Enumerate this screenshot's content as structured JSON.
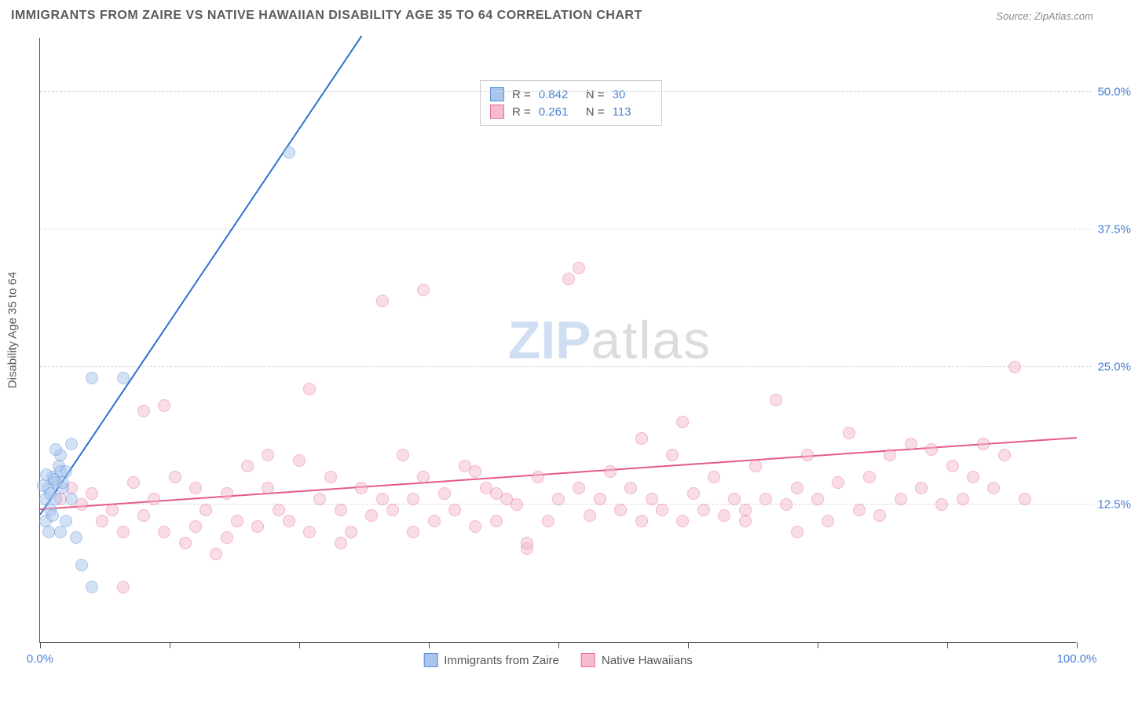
{
  "header": {
    "title": "IMMIGRANTS FROM ZAIRE VS NATIVE HAWAIIAN DISABILITY AGE 35 TO 64 CORRELATION CHART",
    "source_label": "Source:",
    "source_value": "ZipAtlas.com"
  },
  "chart": {
    "type": "scatter",
    "ylabel": "Disability Age 35 to 64",
    "xlim": [
      0,
      100
    ],
    "ylim": [
      0,
      55
    ],
    "xtick_positions": [
      0,
      12.5,
      25,
      37.5,
      50,
      62.5,
      75,
      87.5,
      100
    ],
    "xtick_labels": {
      "0": "0.0%",
      "100": "100.0%"
    },
    "ytick_values": [
      12.5,
      25.0,
      37.5,
      50.0
    ],
    "ytick_labels": [
      "12.5%",
      "25.0%",
      "37.5%",
      "50.0%"
    ],
    "grid_color": "#d9d9d9",
    "axis_color": "#555555",
    "background_color": "#ffffff",
    "marker_radius": 8,
    "marker_opacity": 0.5,
    "line_width": 2,
    "series": [
      {
        "name": "Immigrants from Zaire",
        "color_fill": "#a8c5ec",
        "color_stroke": "#5b8fd6",
        "line_color": "#2f6fd0",
        "R": "0.842",
        "N": "30",
        "trend": {
          "x1": 0,
          "y1": 11.5,
          "x2": 31,
          "y2": 55
        },
        "points": [
          [
            0.5,
            13
          ],
          [
            0.8,
            14
          ],
          [
            1,
            13.5
          ],
          [
            1.2,
            15
          ],
          [
            1.5,
            14.5
          ],
          [
            1.8,
            16
          ],
          [
            2,
            15.5
          ],
          [
            2.2,
            14
          ],
          [
            0.5,
            11
          ],
          [
            1,
            12
          ],
          [
            1.5,
            13
          ],
          [
            2,
            17
          ],
          [
            2.5,
            15.5
          ],
          [
            3,
            18
          ],
          [
            0.8,
            10
          ],
          [
            1.2,
            11.5
          ],
          [
            2,
            10
          ],
          [
            2.5,
            11
          ],
          [
            3,
            13
          ],
          [
            3.5,
            9.5
          ],
          [
            4,
            7
          ],
          [
            5,
            5
          ],
          [
            5,
            24
          ],
          [
            8,
            24
          ],
          [
            1.5,
            17.5
          ],
          [
            2.2,
            14.5
          ],
          [
            0.3,
            14.2
          ],
          [
            0.6,
            15.2
          ],
          [
            1.4,
            14.8
          ],
          [
            24,
            44.5
          ]
        ]
      },
      {
        "name": "Native Hawaiians",
        "color_fill": "#f4bccd",
        "color_stroke": "#e86d94",
        "line_color": "#e65a87",
        "R": "0.261",
        "N": "113",
        "trend": {
          "x1": 0,
          "y1": 12,
          "x2": 100,
          "y2": 18.5
        },
        "points": [
          [
            2,
            13
          ],
          [
            3,
            14
          ],
          [
            4,
            12.5
          ],
          [
            5,
            13.5
          ],
          [
            6,
            11
          ],
          [
            7,
            12
          ],
          [
            8,
            10
          ],
          [
            9,
            14.5
          ],
          [
            10,
            11.5
          ],
          [
            10,
            21
          ],
          [
            11,
            13
          ],
          [
            12,
            10
          ],
          [
            13,
            15
          ],
          [
            14,
            9
          ],
          [
            15,
            14
          ],
          [
            16,
            12
          ],
          [
            17,
            8
          ],
          [
            18,
            13.5
          ],
          [
            19,
            11
          ],
          [
            20,
            16
          ],
          [
            21,
            10.5
          ],
          [
            22,
            14
          ],
          [
            23,
            12
          ],
          [
            24,
            11
          ],
          [
            25,
            16.5
          ],
          [
            26,
            10
          ],
          [
            27,
            13
          ],
          [
            28,
            15
          ],
          [
            29,
            12
          ],
          [
            30,
            10
          ],
          [
            31,
            14
          ],
          [
            32,
            11.5
          ],
          [
            33,
            13
          ],
          [
            34,
            12
          ],
          [
            35,
            17
          ],
          [
            36,
            10
          ],
          [
            37,
            15
          ],
          [
            38,
            11
          ],
          [
            39,
            13.5
          ],
          [
            40,
            12
          ],
          [
            41,
            16
          ],
          [
            42,
            10.5
          ],
          [
            43,
            14
          ],
          [
            44,
            11
          ],
          [
            45,
            13
          ],
          [
            46,
            12.5
          ],
          [
            47,
            8.5
          ],
          [
            48,
            15
          ],
          [
            49,
            11
          ],
          [
            50,
            13
          ],
          [
            51,
            33
          ],
          [
            52,
            14
          ],
          [
            53,
            11.5
          ],
          [
            54,
            13
          ],
          [
            55,
            15.5
          ],
          [
            56,
            12
          ],
          [
            57,
            14
          ],
          [
            58,
            11
          ],
          [
            59,
            13
          ],
          [
            60,
            12
          ],
          [
            61,
            17
          ],
          [
            62,
            11
          ],
          [
            63,
            13.5
          ],
          [
            64,
            12
          ],
          [
            65,
            15
          ],
          [
            66,
            11.5
          ],
          [
            67,
            13
          ],
          [
            68,
            12
          ],
          [
            69,
            16
          ],
          [
            70,
            13
          ],
          [
            71,
            22
          ],
          [
            72,
            12.5
          ],
          [
            73,
            14
          ],
          [
            74,
            17
          ],
          [
            75,
            13
          ],
          [
            76,
            11
          ],
          [
            77,
            14.5
          ],
          [
            78,
            19
          ],
          [
            79,
            12
          ],
          [
            80,
            15
          ],
          [
            81,
            11.5
          ],
          [
            82,
            17
          ],
          [
            83,
            13
          ],
          [
            84,
            18
          ],
          [
            85,
            14
          ],
          [
            86,
            17.5
          ],
          [
            87,
            12.5
          ],
          [
            88,
            16
          ],
          [
            89,
            13
          ],
          [
            90,
            15
          ],
          [
            91,
            18
          ],
          [
            92,
            14
          ],
          [
            93,
            17
          ],
          [
            94,
            25
          ],
          [
            95,
            13
          ],
          [
            26,
            23
          ],
          [
            33,
            31
          ],
          [
            37,
            32
          ],
          [
            42,
            15.5
          ],
          [
            47,
            9
          ],
          [
            18,
            9.5
          ],
          [
            8,
            5
          ],
          [
            12,
            21.5
          ],
          [
            52,
            34
          ],
          [
            58,
            18.5
          ],
          [
            62,
            20
          ],
          [
            68,
            11
          ],
          [
            22,
            17
          ],
          [
            15,
            10.5
          ],
          [
            29,
            9
          ],
          [
            73,
            10
          ],
          [
            44,
            13.5
          ],
          [
            36,
            13
          ]
        ]
      }
    ]
  },
  "watermark": {
    "zip": "ZIP",
    "atlas": "atlas"
  },
  "colors": {
    "tick_text": "#4a80d6",
    "label_text": "#5a5a5a"
  }
}
